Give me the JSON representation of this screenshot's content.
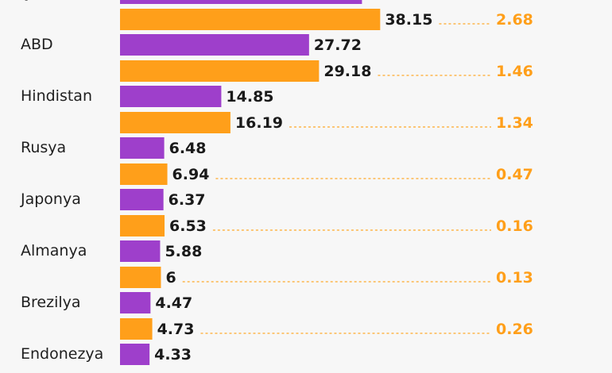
{
  "colors": {
    "series1": "#9e3fcb",
    "series2": "#ff9f1a",
    "difference_text": "#ff9f1a",
    "leader_line": "#ffa82a",
    "background": "#f7f7f7"
  },
  "chart_data": {
    "type": "bar",
    "orientation": "horizontal",
    "categories": [
      "Çin",
      "ABD",
      "Hindistan",
      "Rusya",
      "Japonya",
      "Almanya",
      "Brezilya",
      "Endonezya"
    ],
    "series": [
      {
        "values": [
          35.48,
          27.72,
          14.85,
          6.48,
          6.37,
          5.88,
          4.47,
          4.33
        ]
      },
      {
        "values": [
          38.15,
          29.18,
          16.19,
          6.94,
          6.53,
          6.0,
          4.73,
          null
        ]
      }
    ],
    "value_labels_1": [
      "",
      "27.72",
      "14.85",
      "6.48",
      "6.37",
      "5.88",
      "4.47",
      "4.33"
    ],
    "value_labels_2": [
      "38.15",
      "29.18",
      "16.19",
      "6.94",
      "6.53",
      "6",
      "4.73",
      ""
    ],
    "differences": [
      "2.68",
      "1.46",
      "1.34",
      "0.47",
      "0.16",
      "0.13",
      "0.26",
      ""
    ],
    "title": "",
    "xlabel": "",
    "ylabel": "",
    "grid": false,
    "legend": "none"
  }
}
